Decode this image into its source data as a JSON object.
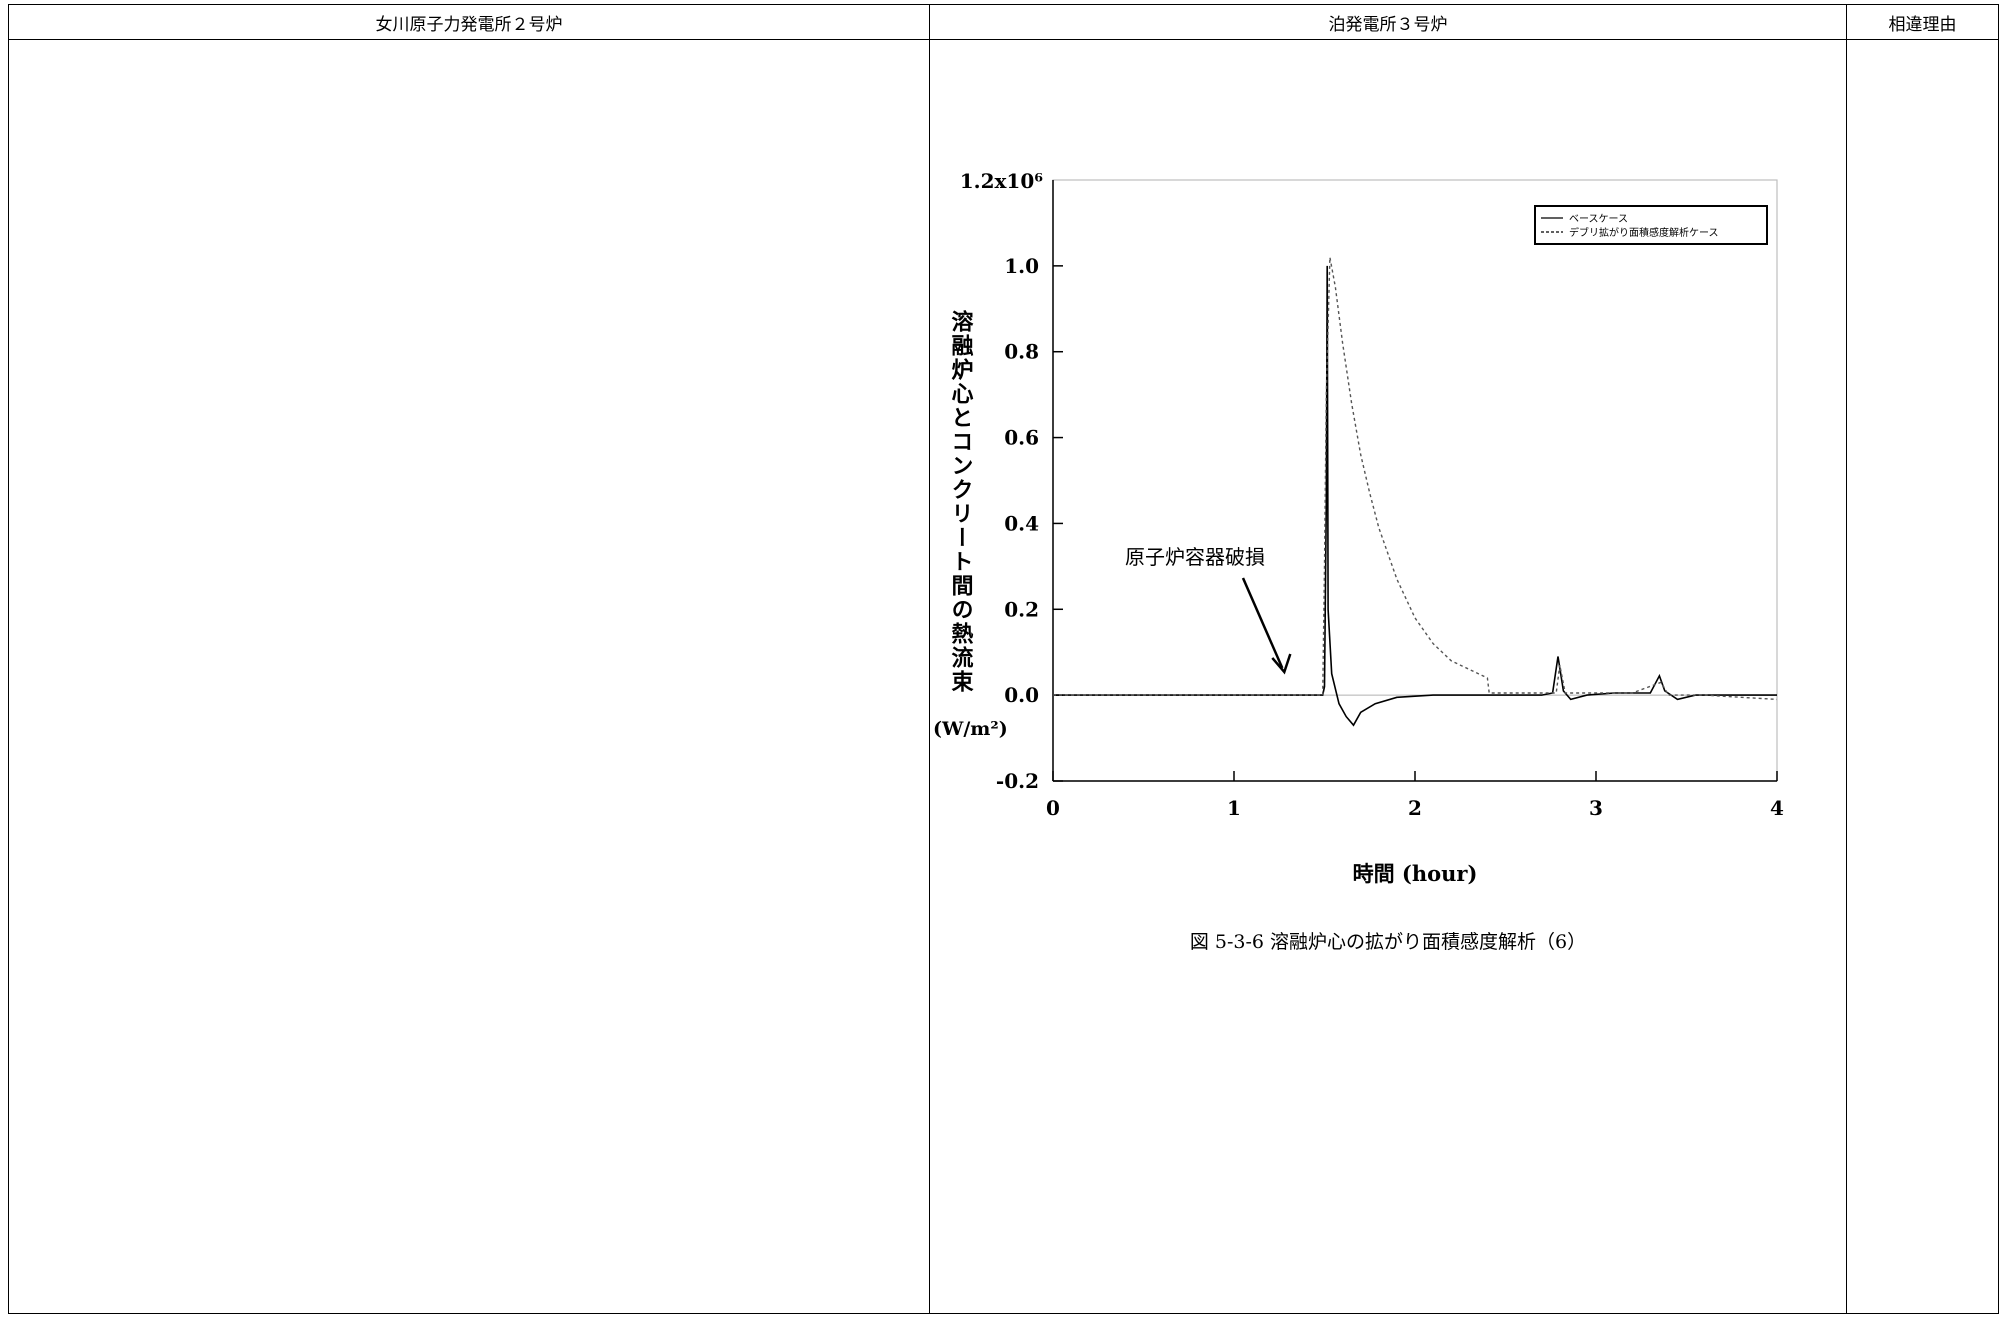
{
  "table": {
    "headers": [
      "女川原子力発電所２号炉",
      "泊発電所３号炉",
      "相違理由"
    ]
  },
  "figure": {
    "caption": "図 5-3-6 溶融炉心の拡がり面積感度解析（6）",
    "annotation": "原子炉容器破損"
  },
  "chart_data": {
    "type": "line",
    "xlabel": "時間 (hour)",
    "ylabel": "溶融炉心とコンクリート間の熱流束",
    "ylabel_unit": "(W/m²)",
    "y_scale_label": "1.2x10⁶",
    "xlim": [
      0,
      4
    ],
    "ylim": [
      -0.2,
      1.2
    ],
    "x_ticks": [
      "0",
      "1",
      "2",
      "3",
      "4"
    ],
    "y_ticks": [
      "-0.2",
      "0.0",
      "0.2",
      "0.4",
      "0.6",
      "0.8",
      "1.0"
    ],
    "legend_position": "top-right",
    "series": [
      {
        "name": "ベースケース",
        "style": "solid",
        "color": "#000000",
        "points": [
          [
            0,
            0
          ],
          [
            1.49,
            0
          ],
          [
            1.5,
            0.02
          ],
          [
            1.51,
            0.45
          ],
          [
            1.515,
            1.0
          ],
          [
            1.52,
            0.2
          ],
          [
            1.54,
            0.05
          ],
          [
            1.58,
            -0.02
          ],
          [
            1.62,
            -0.05
          ],
          [
            1.66,
            -0.07
          ],
          [
            1.7,
            -0.04
          ],
          [
            1.78,
            -0.02
          ],
          [
            1.9,
            -0.005
          ],
          [
            2.1,
            0
          ],
          [
            2.3,
            0
          ],
          [
            2.5,
            0
          ],
          [
            2.7,
            0
          ],
          [
            2.76,
            0.005
          ],
          [
            2.79,
            0.09
          ],
          [
            2.82,
            0.01
          ],
          [
            2.86,
            -0.01
          ],
          [
            2.95,
            0
          ],
          [
            3.1,
            0.005
          ],
          [
            3.3,
            0.005
          ],
          [
            3.35,
            0.045
          ],
          [
            3.38,
            0.01
          ],
          [
            3.45,
            -0.01
          ],
          [
            3.55,
            0
          ],
          [
            4.0,
            0
          ]
        ]
      },
      {
        "name": "デブリ拡がり面積感度解析ケース",
        "style": "dashed",
        "color": "#000000",
        "points": [
          [
            0,
            0
          ],
          [
            1.49,
            0
          ],
          [
            1.5,
            0.3
          ],
          [
            1.51,
            0.7
          ],
          [
            1.53,
            1.02
          ],
          [
            1.56,
            0.95
          ],
          [
            1.6,
            0.82
          ],
          [
            1.65,
            0.68
          ],
          [
            1.7,
            0.56
          ],
          [
            1.75,
            0.47
          ],
          [
            1.8,
            0.39
          ],
          [
            1.9,
            0.27
          ],
          [
            2.0,
            0.18
          ],
          [
            2.1,
            0.12
          ],
          [
            2.2,
            0.08
          ],
          [
            2.3,
            0.06
          ],
          [
            2.4,
            0.04
          ],
          [
            2.41,
            0.005
          ],
          [
            2.6,
            0.005
          ],
          [
            2.78,
            0.005
          ],
          [
            2.8,
            0.07
          ],
          [
            2.83,
            0.005
          ],
          [
            3.2,
            0.005
          ],
          [
            3.36,
            0.03
          ],
          [
            3.4,
            0.0
          ],
          [
            3.6,
            0.0
          ],
          [
            3.8,
            -0.005
          ],
          [
            4.0,
            -0.01
          ]
        ]
      }
    ],
    "annotation_arrow_target": [
      1.3,
      0.04
    ]
  }
}
